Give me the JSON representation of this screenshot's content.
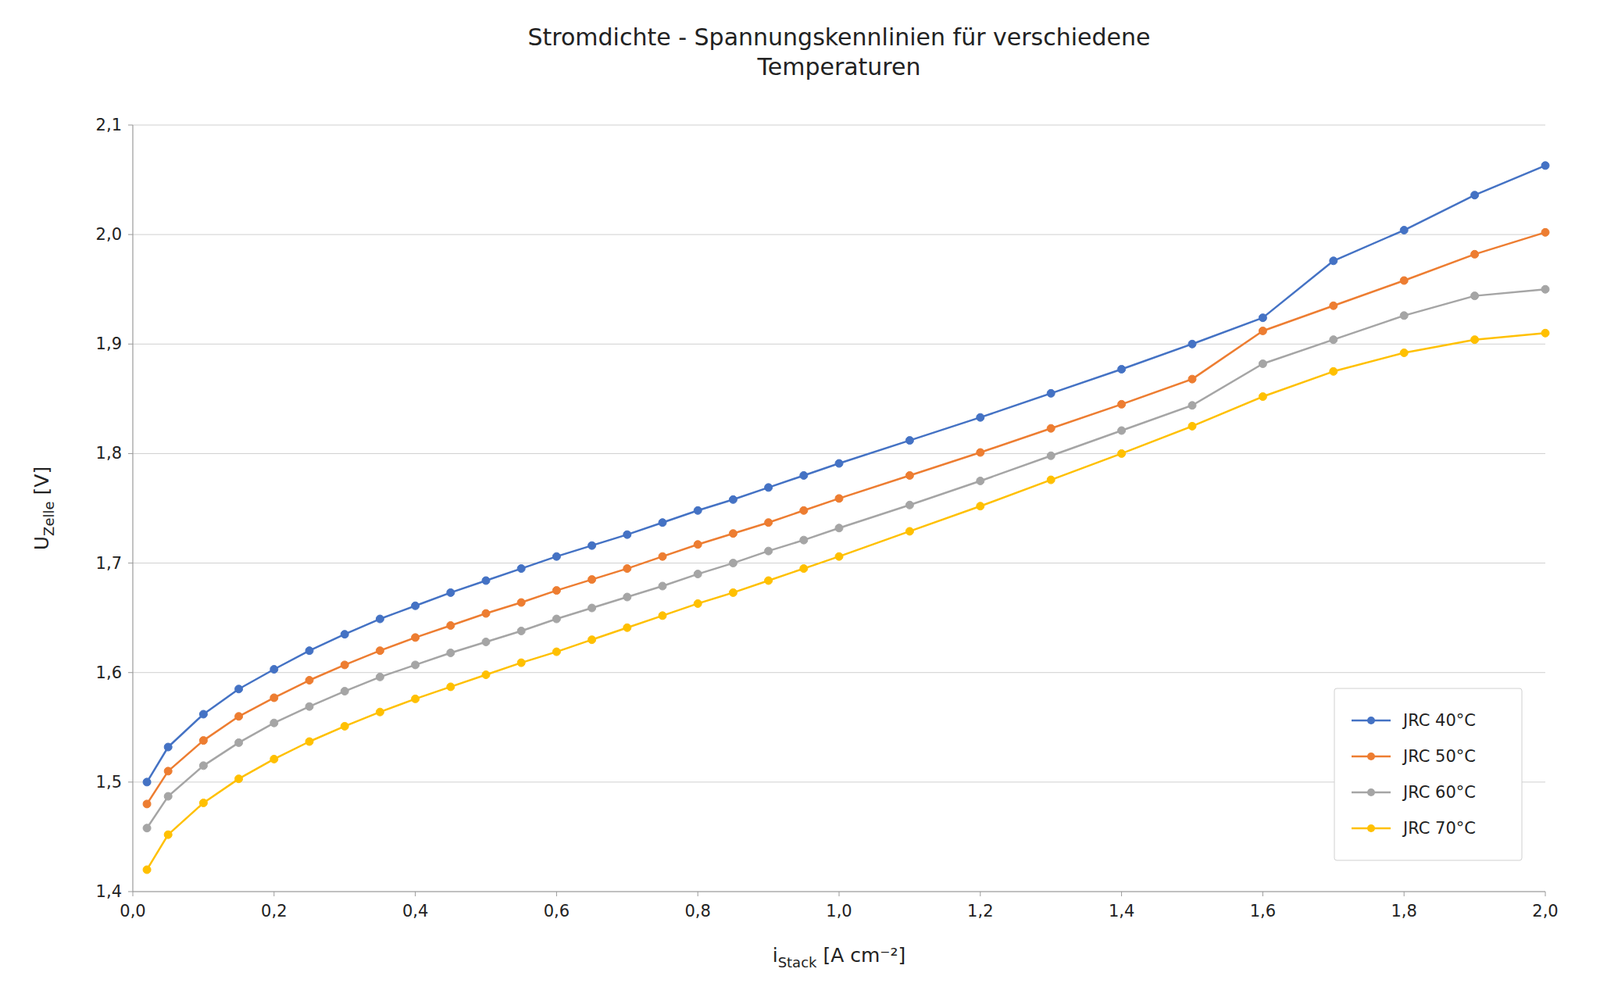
{
  "chart_data": {
    "type": "line",
    "title": "Stromdichte - Spannungskennlinien für verschiedene\nTemperaturen",
    "xlabel": "iStack [A cm⁻²]",
    "ylabel": "UZelle [V]",
    "x": [
      0.02,
      0.05,
      0.1,
      0.15,
      0.2,
      0.25,
      0.3,
      0.35,
      0.4,
      0.45,
      0.5,
      0.55,
      0.6,
      0.65,
      0.7,
      0.75,
      0.8,
      0.85,
      0.9,
      0.95,
      1.0,
      1.1,
      1.2,
      1.3,
      1.4,
      1.5,
      1.6,
      1.7,
      1.8,
      1.9,
      2.0
    ],
    "series": [
      {
        "name": "JRC 40°C",
        "color": "#4472C4",
        "marker": "circle",
        "values": [
          1.5,
          1.532,
          1.562,
          1.585,
          1.603,
          1.62,
          1.635,
          1.649,
          1.661,
          1.673,
          1.684,
          1.695,
          1.706,
          1.716,
          1.726,
          1.737,
          1.748,
          1.758,
          1.769,
          1.78,
          1.791,
          1.812,
          1.833,
          1.855,
          1.877,
          1.9,
          1.924,
          1.976,
          2.004,
          2.036,
          2.063
        ]
      },
      {
        "name": "JRC 50°C",
        "color": "#ED7D31",
        "marker": "circle",
        "values": [
          1.48,
          1.51,
          1.538,
          1.56,
          1.577,
          1.593,
          1.607,
          1.62,
          1.632,
          1.643,
          1.654,
          1.664,
          1.675,
          1.685,
          1.695,
          1.706,
          1.717,
          1.727,
          1.737,
          1.748,
          1.759,
          1.78,
          1.801,
          1.823,
          1.845,
          1.868,
          1.912,
          1.935,
          1.958,
          1.982,
          2.002
        ]
      },
      {
        "name": "JRC 60°C",
        "color": "#A5A5A5",
        "marker": "circle",
        "values": [
          1.458,
          1.487,
          1.515,
          1.536,
          1.554,
          1.569,
          1.583,
          1.596,
          1.607,
          1.618,
          1.628,
          1.638,
          1.649,
          1.659,
          1.669,
          1.679,
          1.69,
          1.7,
          1.711,
          1.721,
          1.732,
          1.753,
          1.775,
          1.798,
          1.821,
          1.844,
          1.882,
          1.904,
          1.926,
          1.944,
          1.95
        ]
      },
      {
        "name": "JRC 70°C",
        "color": "#FFC000",
        "marker": "circle",
        "values": [
          1.42,
          1.452,
          1.481,
          1.503,
          1.521,
          1.537,
          1.551,
          1.564,
          1.576,
          1.587,
          1.598,
          1.609,
          1.619,
          1.63,
          1.641,
          1.652,
          1.663,
          1.673,
          1.684,
          1.695,
          1.706,
          1.729,
          1.752,
          1.776,
          1.8,
          1.825,
          1.852,
          1.875,
          1.892,
          1.904,
          1.91
        ]
      }
    ],
    "xlim": [
      0,
      2.0
    ],
    "ylim": [
      1.4,
      2.1
    ],
    "xticks": [
      {
        "value": 0.0,
        "label": "0,0"
      },
      {
        "value": 0.2,
        "label": "0,2"
      },
      {
        "value": 0.4,
        "label": "0,4"
      },
      {
        "value": 0.6,
        "label": "0,6"
      },
      {
        "value": 0.8,
        "label": "0,8"
      },
      {
        "value": 1.0,
        "label": "1,0"
      },
      {
        "value": 1.2,
        "label": "1,2"
      },
      {
        "value": 1.4,
        "label": "1,4"
      },
      {
        "value": 1.6,
        "label": "1,6"
      },
      {
        "value": 1.8,
        "label": "1,8"
      },
      {
        "value": 2.0,
        "label": "2,0"
      }
    ],
    "yticks": [
      {
        "value": 1.4,
        "label": "1,4"
      },
      {
        "value": 1.5,
        "label": "1,5"
      },
      {
        "value": 1.6,
        "label": "1,6"
      },
      {
        "value": 1.7,
        "label": "1,7"
      },
      {
        "value": 1.8,
        "label": "1,8"
      },
      {
        "value": 1.9,
        "label": "1,9"
      },
      {
        "value": 2.0,
        "label": "2,0"
      },
      {
        "value": 2.1,
        "label": "2,1"
      }
    ],
    "grid": true,
    "legend": "lower right"
  }
}
